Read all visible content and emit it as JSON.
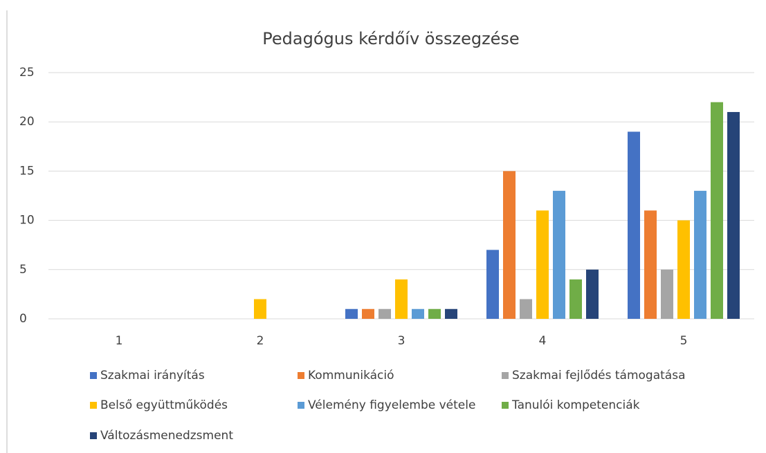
{
  "chart_data": {
    "type": "bar",
    "title": "Pedagógus kérdőív összegzése",
    "categories": [
      "1",
      "2",
      "3",
      "4",
      "5"
    ],
    "series": [
      {
        "name": "Szakmai irányítás",
        "color": "#4472c4",
        "values": [
          0,
          0,
          1,
          7,
          19
        ]
      },
      {
        "name": "Kommunikáció",
        "color": "#ed7d31",
        "values": [
          0,
          0,
          1,
          15,
          11
        ]
      },
      {
        "name": "Szakmai fejlődés támogatása",
        "color": "#a5a5a5",
        "values": [
          0,
          0,
          1,
          2,
          5
        ]
      },
      {
        "name": "Belső együttműködés",
        "color": "#ffc000",
        "values": [
          0,
          2,
          4,
          11,
          10
        ]
      },
      {
        "name": "Vélemény figyelembe vétele",
        "color": "#5b9bd5",
        "values": [
          0,
          0,
          1,
          13,
          13
        ]
      },
      {
        "name": "Tanulói kompetenciák",
        "color": "#70ad47",
        "values": [
          0,
          0,
          1,
          4,
          22
        ]
      },
      {
        "name": "Változásmenedzsment",
        "color": "#264478",
        "values": [
          0,
          0,
          1,
          5,
          21
        ]
      }
    ],
    "ylim": [
      0,
      25
    ],
    "yticks": [
      0,
      5,
      10,
      15,
      20,
      25
    ],
    "grid": true,
    "legend": "bottom"
  }
}
